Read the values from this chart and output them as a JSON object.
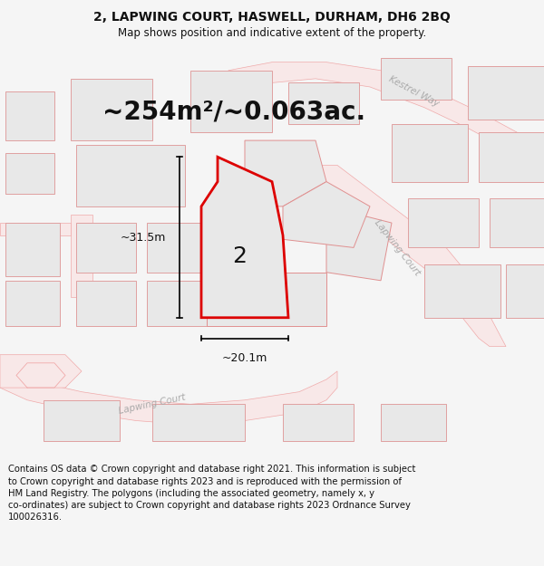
{
  "title_line1": "2, LAPWING COURT, HASWELL, DURHAM, DH6 2BQ",
  "title_line2": "Map shows position and indicative extent of the property.",
  "area_text": "~254m²/~0.063ac.",
  "label_number": "2",
  "dim_vertical": "~31.5m",
  "dim_horizontal": "~20.1m",
  "footer_text": "Contains OS data © Crown copyright and database right 2021. This information is subject\nto Crown copyright and database rights 2023 and is reproduced with the permission of\nHM Land Registry. The polygons (including the associated geometry, namely x, y\nco-ordinates) are subject to Crown copyright and database rights 2023 Ordnance Survey\n100026316.",
  "bg_color": "#f5f5f5",
  "map_bg": "#ffffff",
  "plot_fill": "#e8e8e8",
  "plot_stroke": "#dd0000",
  "road_outline": "#f0aaaa",
  "road_fill": "#f8e8e8",
  "building_fill": "#e8e8e8",
  "building_stroke": "#e0a0a0",
  "plot_outline_color": "#e09090",
  "street_label_color": "#aaaaaa",
  "text_color": "#111111",
  "footer_color": "#111111",
  "title_fontsize": 10,
  "subtitle_fontsize": 8.5,
  "area_fontsize": 20,
  "footer_fontsize": 7.2,
  "street_fontsize": 7.5
}
